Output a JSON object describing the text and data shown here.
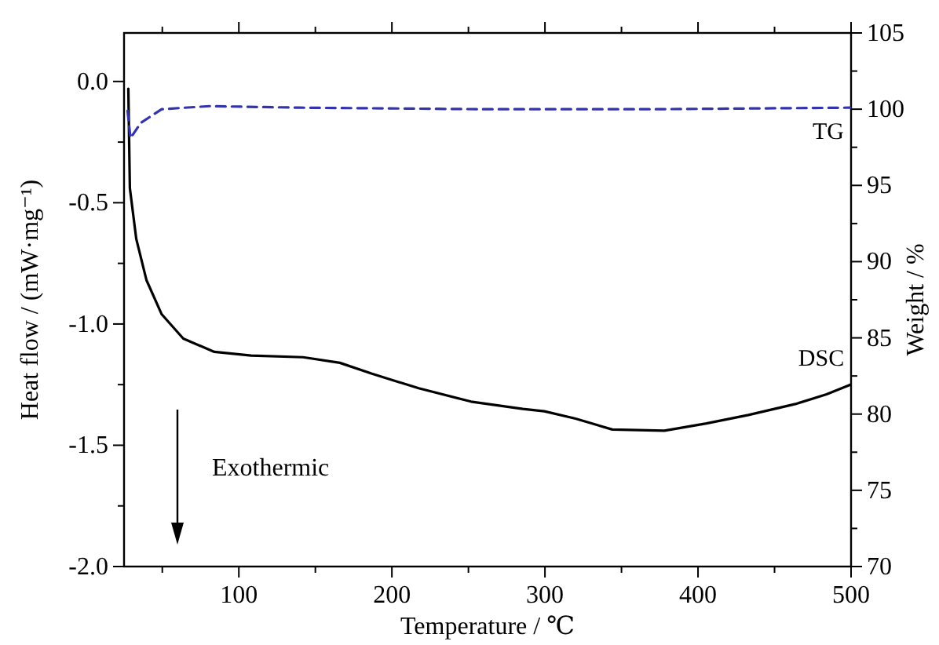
{
  "chart_data": {
    "type": "line",
    "xlabel": "Temperature / ℃",
    "ylabel": "Heat flow / (mW·mg⁻¹)",
    "y2label": "Weight / %",
    "xlim": [
      25,
      500
    ],
    "xticks": [
      {
        "value": 50,
        "label": null
      },
      100,
      {
        "value": 150,
        "label": null
      },
      200,
      {
        "value": 250,
        "label": null
      },
      300,
      {
        "value": 350,
        "label": null
      },
      400,
      {
        "value": 450,
        "label": null
      },
      500
    ],
    "ylim": [
      -2.0,
      0.2
    ],
    "yticks": [
      {
        "value": -2.0,
        "label": "-2.0"
      },
      {
        "value": -1.75,
        "label": null
      },
      {
        "value": -1.5,
        "label": "-1.5"
      },
      {
        "value": -1.25,
        "label": null
      },
      {
        "value": -1.0,
        "label": "-1.0"
      },
      {
        "value": -0.75,
        "label": null
      },
      {
        "value": -0.5,
        "label": "-0.5"
      },
      {
        "value": -0.25,
        "label": null
      },
      {
        "value": 0.0,
        "label": "0.0"
      }
    ],
    "y2lim": [
      70,
      105
    ],
    "y2ticks": [
      70,
      {
        "value": 72.5,
        "label": null
      },
      75,
      {
        "value": 77.5,
        "label": null
      },
      80,
      {
        "value": 82.5,
        "label": null
      },
      85,
      {
        "value": 87.5,
        "label": null
      },
      90,
      {
        "value": 92.5,
        "label": null
      },
      95,
      {
        "value": 97.5,
        "label": null
      },
      100,
      {
        "value": 102.5,
        "label": null
      },
      105
    ],
    "grid": false,
    "series": [
      {
        "name": "DSC",
        "color": "#000000",
        "line_style": "solid",
        "x": [
          27.8,
          28.8,
          33,
          39.7,
          49.6,
          63.7,
          84,
          108,
          142,
          166,
          187,
          217.5,
          251.7,
          285.5,
          299.6,
          320,
          344,
          378,
          405.5,
          432.9,
          463.6,
          484,
          499.6
        ],
        "values": [
          -0.03,
          -0.44,
          -0.65,
          -0.82,
          -0.96,
          -1.06,
          -1.115,
          -1.13,
          -1.137,
          -1.16,
          -1.205,
          -1.265,
          -1.32,
          -1.35,
          -1.36,
          -1.39,
          -1.435,
          -1.44,
          -1.41,
          -1.375,
          -1.33,
          -1.29,
          -1.25
        ]
      },
      {
        "name": "TG",
        "color": "#3333aa",
        "line_style": "dashed",
        "axis": "y2",
        "x": [
          27.3,
          29.2,
          35.9,
          49.6,
          80.9,
          139.6,
          256.8,
          374,
          499.5
        ],
        "values": [
          99.9,
          98.1,
          99.1,
          100.0,
          100.2,
          100.1,
          100.0,
          100.0,
          100.1
        ]
      }
    ],
    "annotations": [
      "Exothermic"
    ]
  }
}
